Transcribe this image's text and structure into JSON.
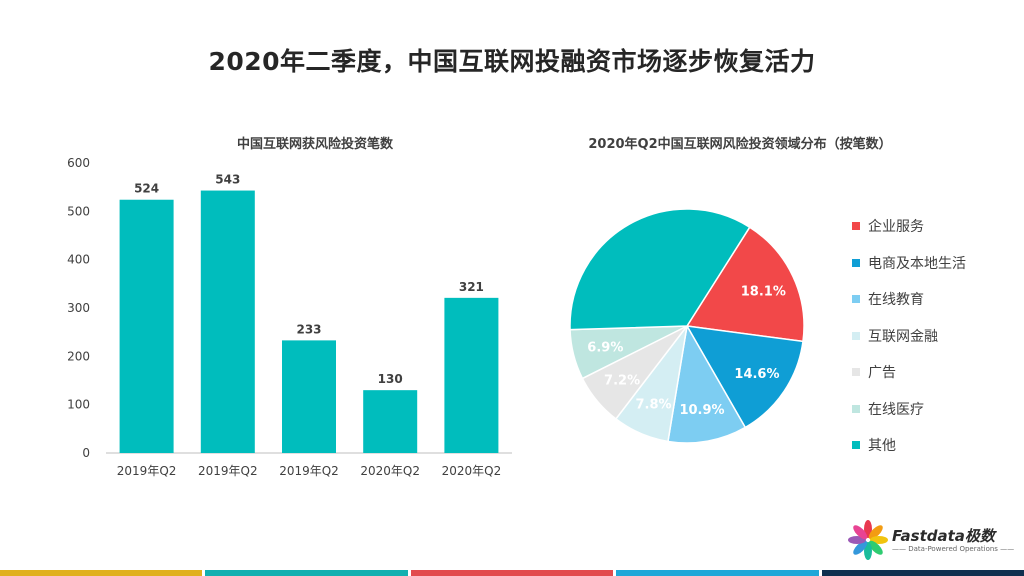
{
  "page": {
    "title": "2020年二季度，中国互联网投融资市场逐步恢复活力"
  },
  "chart_data": [
    {
      "type": "bar",
      "title": "中国互联网获风险投资笔数",
      "categories": [
        "2019年Q2",
        "2019年Q2",
        "2019年Q2",
        "2020年Q2",
        "2020年Q2"
      ],
      "values": [
        524,
        543,
        233,
        130,
        321
      ],
      "ylim": [
        0,
        600
      ],
      "yticks": [
        0,
        100,
        200,
        300,
        400,
        500,
        600
      ],
      "color": "#00BDBD",
      "grid": false,
      "data_labels": true
    },
    {
      "type": "pie",
      "title": "2020年Q2中国互联网风险投资领域分布（按笔数）",
      "legend_position": "right",
      "slices": [
        {
          "label": "企业服务",
          "value": 18.1,
          "display": "18.1%",
          "color": "#F24849"
        },
        {
          "label": "电商及本地生活",
          "value": 14.6,
          "display": "14.6%",
          "color": "#0F9ED5"
        },
        {
          "label": "在线教育",
          "value": 10.9,
          "display": "10.9%",
          "color": "#7DCDF2"
        },
        {
          "label": "互联网金融",
          "value": 7.8,
          "display": "7.8%",
          "color": "#D4EEF3"
        },
        {
          "label": "广告",
          "value": 7.2,
          "display": "7.2%",
          "color": "#E6E6E6"
        },
        {
          "label": "在线医疗",
          "value": 6.9,
          "display": "6.9%",
          "color": "#BFE6E0"
        },
        {
          "label": "其他",
          "value": 34.5,
          "display": "",
          "color": "#00BDBD"
        }
      ]
    }
  ],
  "logo": {
    "wordmark": "Fastdata极数",
    "tagline": "—— Data-Powered Operations ——"
  },
  "footer": {
    "colors": [
      "#E0B01E",
      "#12B0B0",
      "#E24B4E",
      "#1FA7D8",
      "#0F2F4F"
    ]
  }
}
